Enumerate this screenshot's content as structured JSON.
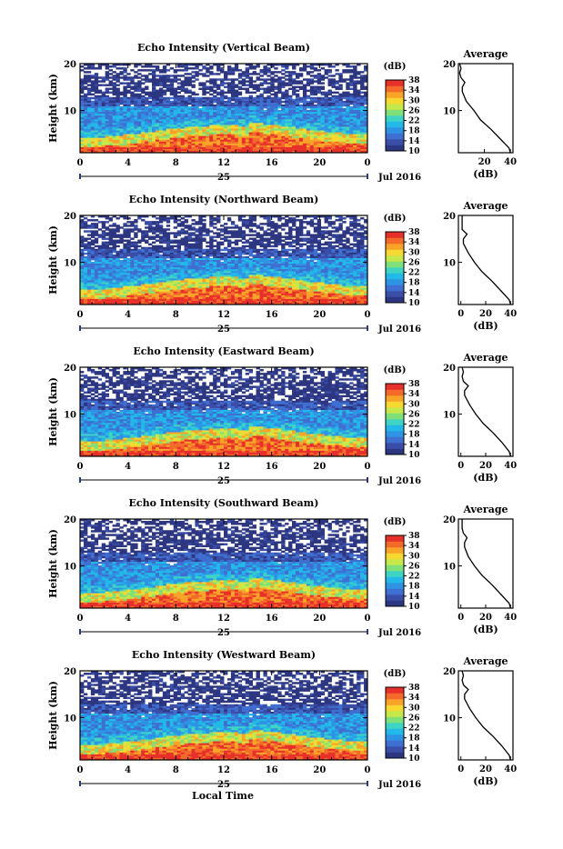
{
  "figure": {
    "xlabel": "Local Time",
    "height_label": "Height (km)",
    "unit_label": "(dB)",
    "avg_title": "Average",
    "avg_xlabel": "(dB)",
    "date_left": "25",
    "date_right": "Jul 2016"
  },
  "colors": {
    "scale": [
      "#2d3680",
      "#3a4ea8",
      "#3f6fd0",
      "#2f93e4",
      "#22b8e8",
      "#3fd3c4",
      "#7fe07a",
      "#c6e84a",
      "#f6d830",
      "#f7a428",
      "#f36a2a",
      "#e8302a"
    ],
    "background": "#ffffff"
  },
  "chart_data": [
    {
      "type": "heatmap",
      "title": "Echo Intensity (Vertical Beam)",
      "x_ticks": [
        "0",
        "4",
        "8",
        "12",
        "16",
        "20",
        "0"
      ],
      "y_ticks": [
        "20",
        "10"
      ],
      "xlim_hours": [
        0,
        24
      ],
      "ylim_km": [
        1,
        20
      ],
      "colorbar_ticks": [
        "38",
        "34",
        "30",
        "26",
        "22",
        "18",
        "14",
        "10"
      ],
      "colorbar_range_db": [
        10,
        38
      ],
      "profile": {
        "height_km": [
          1,
          2,
          4,
          6,
          8,
          10,
          12,
          14,
          15,
          16,
          17,
          18,
          19,
          20
        ],
        "db": [
          40,
          39,
          32,
          25,
          17,
          12,
          6,
          3,
          3,
          5,
          2,
          1,
          2,
          1
        ]
      },
      "avg_x_ticks": [
        "20",
        "40"
      ],
      "avg_xlim_db": [
        0,
        42
      ]
    },
    {
      "type": "heatmap",
      "title": "Echo Intensity (Northward Beam)",
      "x_ticks": [
        "0",
        "4",
        "8",
        "12",
        "16",
        "20",
        "0"
      ],
      "y_ticks": [
        "20",
        "10"
      ],
      "xlim_hours": [
        0,
        24
      ],
      "ylim_km": [
        1,
        20
      ],
      "colorbar_ticks": [
        "38",
        "34",
        "30",
        "26",
        "22",
        "18",
        "14",
        "10"
      ],
      "colorbar_range_db": [
        10,
        38
      ],
      "profile": {
        "height_km": [
          1,
          2,
          4,
          6,
          8,
          10,
          12,
          14,
          15,
          16,
          17,
          18,
          19,
          20
        ],
        "db": [
          40,
          39,
          32,
          25,
          17,
          11,
          6,
          2,
          2,
          5,
          1,
          1,
          1,
          1
        ]
      },
      "avg_x_ticks": [
        "0",
        "20",
        "40"
      ],
      "avg_xlim_db": [
        -2,
        42
      ]
    },
    {
      "type": "heatmap",
      "title": "Echo Intensity (Eastward Beam)",
      "x_ticks": [
        "0",
        "4",
        "8",
        "12",
        "16",
        "20",
        "0"
      ],
      "y_ticks": [
        "20",
        "10"
      ],
      "xlim_hours": [
        0,
        24
      ],
      "ylim_km": [
        1,
        20
      ],
      "colorbar_ticks": [
        "38",
        "34",
        "30",
        "26",
        "22",
        "18",
        "14",
        "10"
      ],
      "colorbar_range_db": [
        10,
        38
      ],
      "profile": {
        "height_km": [
          1,
          2,
          4,
          6,
          8,
          10,
          12,
          14,
          15,
          16,
          17,
          18,
          19,
          20
        ],
        "db": [
          40,
          39,
          33,
          26,
          18,
          12,
          7,
          3,
          3,
          6,
          2,
          1,
          2,
          1
        ]
      },
      "avg_x_ticks": [
        "0",
        "20",
        "40"
      ],
      "avg_xlim_db": [
        -2,
        42
      ]
    },
    {
      "type": "heatmap",
      "title": "Echo Intensity (Southward Beam)",
      "x_ticks": [
        "0",
        "4",
        "8",
        "12",
        "16",
        "20",
        "0"
      ],
      "y_ticks": [
        "20",
        "10"
      ],
      "xlim_hours": [
        0,
        24
      ],
      "ylim_km": [
        1,
        20
      ],
      "colorbar_ticks": [
        "38",
        "34",
        "30",
        "26",
        "22",
        "18",
        "14",
        "10"
      ],
      "colorbar_range_db": [
        10,
        38
      ],
      "profile": {
        "height_km": [
          1,
          2,
          4,
          6,
          8,
          10,
          12,
          14,
          15,
          16,
          17,
          18,
          19,
          20
        ],
        "db": [
          40,
          39,
          32,
          25,
          17,
          11,
          6,
          3,
          3,
          5,
          2,
          1,
          1,
          1
        ]
      },
      "avg_x_ticks": [
        "0",
        "20",
        "40"
      ],
      "avg_xlim_db": [
        -2,
        42
      ]
    },
    {
      "type": "heatmap",
      "title": "Echo Intensity (Westward Beam)",
      "x_ticks": [
        "0",
        "4",
        "8",
        "12",
        "16",
        "20",
        "0"
      ],
      "y_ticks": [
        "20",
        "10"
      ],
      "xlim_hours": [
        0,
        24
      ],
      "ylim_km": [
        1,
        20
      ],
      "colorbar_ticks": [
        "38",
        "34",
        "30",
        "26",
        "22",
        "18",
        "14",
        "10"
      ],
      "colorbar_range_db": [
        10,
        38
      ],
      "profile": {
        "height_km": [
          1,
          2,
          4,
          6,
          8,
          10,
          12,
          14,
          15,
          16,
          17,
          18,
          19,
          20
        ],
        "db": [
          40,
          39,
          33,
          26,
          18,
          12,
          7,
          3,
          3,
          6,
          2,
          1,
          2,
          1
        ]
      },
      "avg_x_ticks": [
        "0",
        "20",
        "40"
      ],
      "avg_xlim_db": [
        -2,
        42
      ]
    }
  ]
}
